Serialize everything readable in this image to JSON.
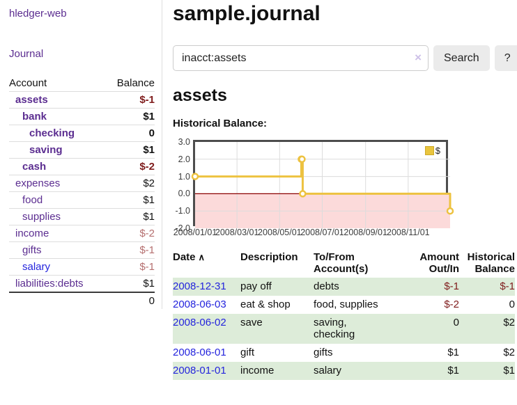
{
  "sidebar": {
    "app_title": "hledger-web",
    "journal_label": "Journal",
    "accounts": {
      "col_account": "Account",
      "col_balance": "Balance",
      "rows": [
        {
          "name": "assets",
          "balance": "$-1"
        },
        {
          "name": "bank",
          "balance": "$1"
        },
        {
          "name": "checking",
          "balance": "0"
        },
        {
          "name": "saving",
          "balance": "$1"
        },
        {
          "name": "cash",
          "balance": "$-2"
        },
        {
          "name": "expenses",
          "balance": "$2"
        },
        {
          "name": "food",
          "balance": "$1"
        },
        {
          "name": "supplies",
          "balance": "$1"
        },
        {
          "name": "income",
          "balance": "$-2"
        },
        {
          "name": "gifts",
          "balance": "$-1"
        },
        {
          "name": "salary",
          "balance": "$-1"
        },
        {
          "name": "liabilities:debts",
          "balance": "$1"
        }
      ],
      "total": "0"
    }
  },
  "header": {
    "title": "sample.journal"
  },
  "search": {
    "value": "inacct:assets",
    "clear_icon": "×",
    "button_label": "Search",
    "help_label": "?"
  },
  "account_page": {
    "heading": "assets",
    "chart_label": "Historical Balance:"
  },
  "chart_data": {
    "type": "line",
    "step": true,
    "title": "Historical Balance:",
    "xlim": [
      "2008-01-01",
      "2008-12-31"
    ],
    "ylim": [
      -2,
      3
    ],
    "y_ticks": [
      3,
      2,
      1,
      0,
      -1,
      -2
    ],
    "y_tick_labels": [
      "3.0",
      "2.0",
      "1.0",
      "0.0",
      "-1.0",
      "-2.0"
    ],
    "x_ticks": [
      "2008/01/01",
      "2008/03/01",
      "2008/05/01",
      "2008/07/01",
      "2008/09/01",
      "2008/11/01"
    ],
    "grid": true,
    "legend_position": "top-right",
    "series": [
      {
        "name": "$",
        "color": "#edc240",
        "points": [
          [
            "2008-01-01",
            1
          ],
          [
            "2008-06-01",
            2
          ],
          [
            "2008-06-02",
            2
          ],
          [
            "2008-06-03",
            0
          ],
          [
            "2008-12-31",
            -1
          ]
        ]
      }
    ],
    "negative_region_color": "#fcdada",
    "zero_line_color": "#8b0000",
    "grid_color": "#dcdcdc"
  },
  "register": {
    "sort_icon": "∧",
    "columns": {
      "date": "Date",
      "description": "Description",
      "accounts": "To/From\nAccount(s)",
      "amount": "Amount\nOut/In",
      "balance": "Historical\nBalance"
    },
    "rows": [
      {
        "date": "2008-12-31",
        "description": "pay off",
        "accounts": "debts",
        "amount": "$-1",
        "balance": "$-1"
      },
      {
        "date": "2008-06-03",
        "description": "eat & shop",
        "accounts": "food, supplies",
        "amount": "$-2",
        "balance": "0"
      },
      {
        "date": "2008-06-02",
        "description": "save",
        "accounts": "saving,\nchecking",
        "amount": "0",
        "balance": "$2"
      },
      {
        "date": "2008-06-01",
        "description": "gift",
        "accounts": "gifts",
        "amount": "$1",
        "balance": "$2"
      },
      {
        "date": "2008-01-01",
        "description": "income",
        "accounts": "salary",
        "amount": "$1",
        "balance": "$1"
      }
    ]
  }
}
